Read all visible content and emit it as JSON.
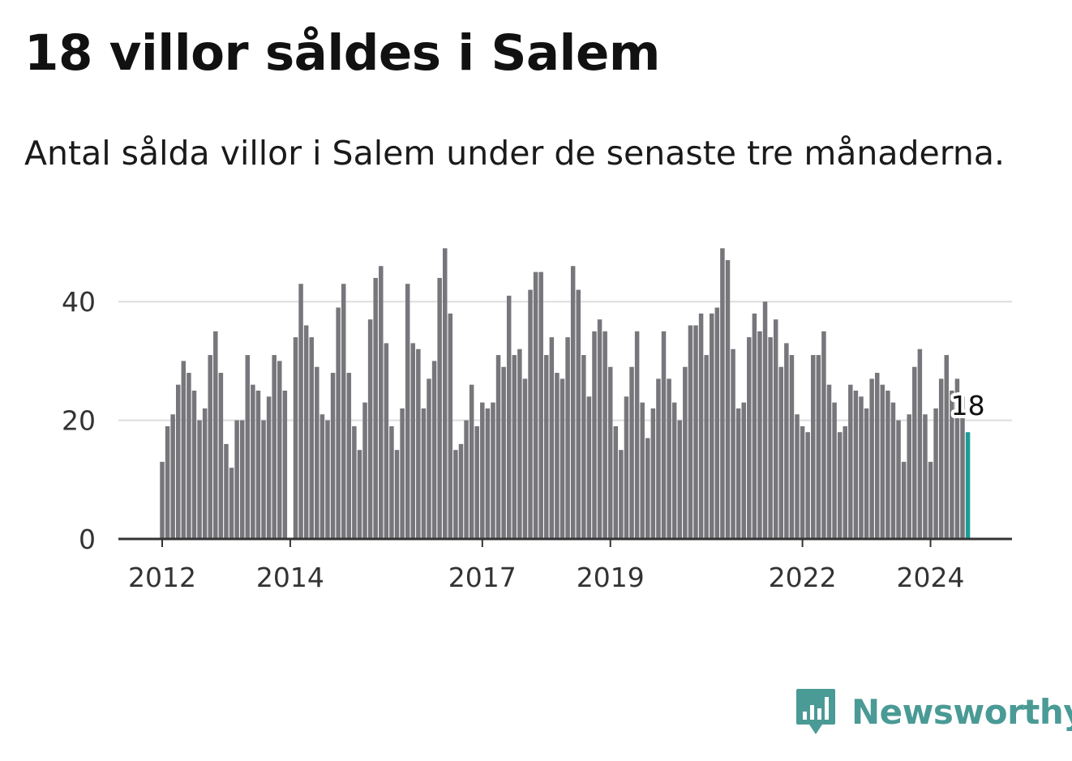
{
  "title": "18 villor såldes i Salem",
  "subtitle": "Antal sålda villor i Salem under de senaste tre månaderna.",
  "brand": {
    "name": "Newsworthy",
    "logo_icon": "newsworthy-bar-chart-speech-icon",
    "color": "#4a9a95"
  },
  "colors": {
    "bar": "#77767b",
    "highlight": "#1f9c96",
    "grid": "#dedede",
    "axis": "#333333"
  },
  "chart_data": {
    "type": "bar",
    "title": "18 villor såldes i Salem",
    "subtitle": "Antal sålda villor i Salem under de senaste tre månaderna.",
    "xlabel": "",
    "ylabel": "",
    "ylim": [
      0,
      50
    ],
    "yticks": [
      0,
      20,
      40
    ],
    "grid": true,
    "x_ticks": [
      {
        "label": "2012",
        "index": 0
      },
      {
        "label": "2014",
        "index": 24
      },
      {
        "label": "2017",
        "index": 60
      },
      {
        "label": "2019",
        "index": 84
      },
      {
        "label": "2022",
        "index": 120
      },
      {
        "label": "2024",
        "index": 144
      }
    ],
    "start_period": "2012-01",
    "values": [
      13,
      19,
      21,
      26,
      30,
      28,
      25,
      20,
      22,
      31,
      35,
      28,
      16,
      12,
      20,
      20,
      31,
      26,
      25,
      20,
      24,
      31,
      30,
      25,
      0,
      34,
      43,
      36,
      34,
      29,
      21,
      20,
      28,
      39,
      43,
      28,
      19,
      15,
      23,
      37,
      44,
      46,
      33,
      19,
      15,
      22,
      43,
      33,
      32,
      22,
      27,
      30,
      44,
      49,
      38,
      15,
      16,
      20,
      26,
      19,
      23,
      22,
      23,
      31,
      29,
      41,
      31,
      32,
      27,
      42,
      45,
      45,
      31,
      34,
      28,
      27,
      34,
      46,
      42,
      31,
      24,
      35,
      37,
      35,
      29,
      19,
      15,
      24,
      29,
      35,
      23,
      17,
      22,
      27,
      35,
      27,
      23,
      20,
      29,
      36,
      36,
      38,
      31,
      38,
      39,
      49,
      47,
      32,
      22,
      23,
      34,
      38,
      35,
      40,
      34,
      37,
      29,
      33,
      31,
      21,
      19,
      18,
      31,
      31,
      35,
      26,
      23,
      18,
      19,
      26,
      25,
      24,
      22,
      27,
      28,
      26,
      25,
      23,
      20,
      13,
      21,
      29,
      32,
      21,
      13,
      22,
      27,
      31,
      25,
      27,
      24,
      18
    ],
    "highlight_index": 151,
    "highlight_label": "18"
  }
}
